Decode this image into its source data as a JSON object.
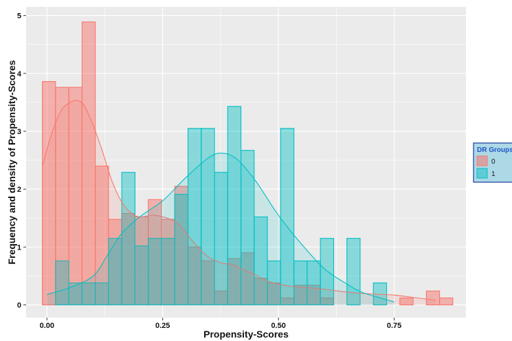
{
  "chart_data": {
    "type": "bar",
    "subtype": "overlaid histogram with density curves",
    "title": "",
    "xlabel": "Propensity-Scores",
    "ylabel": "Frequency and density of Propensity-Scores",
    "xlim": [
      -0.045,
      0.905
    ],
    "ylim": [
      -0.22,
      5.15
    ],
    "xticks": [
      0.0,
      0.25,
      0.5,
      0.75
    ],
    "xtick_labels": [
      "0.00",
      "0.25",
      "0.50",
      "0.75"
    ],
    "yticks": [
      0,
      1,
      2,
      3,
      4,
      5
    ],
    "ytick_labels": [
      "0",
      "1",
      "2",
      "3",
      "4",
      "5"
    ],
    "grid": true,
    "legend": {
      "title": "DR Groups",
      "placement": "right",
      "entries": [
        "0",
        "1"
      ]
    },
    "colors": {
      "group0": "#F8766D",
      "group1": "#00BFC4",
      "panel_bg": "#EBEBEB",
      "legend_bg": "#ADD8E6",
      "legend_border": "#1A3C9E",
      "legend_title": "#1F56C8"
    },
    "bin_width": 0.0286,
    "series": [
      {
        "name": "0",
        "bin_left": [
          -0.01,
          0.0186,
          0.0472,
          0.0758,
          0.1044,
          0.133,
          0.1616,
          0.1902,
          0.2188,
          0.2474,
          0.276,
          0.3046,
          0.3332,
          0.3618,
          0.3904,
          0.419,
          0.4476,
          0.4762,
          0.5048,
          0.5334,
          0.562,
          0.5906,
          0.6192,
          0.6478,
          0.6764,
          0.705,
          0.7336,
          0.7622,
          0.7908,
          0.8194,
          0.848
        ],
        "values": [
          3.86,
          3.76,
          3.76,
          4.89,
          2.4,
          1.48,
          1.58,
          1.52,
          1.82,
          1.48,
          2.05,
          1.0,
          0.76,
          0.24,
          0.8,
          0.9,
          0.46,
          0.38,
          0.12,
          0.34,
          0.34,
          0.12,
          0.0,
          0.0,
          0.0,
          0.0,
          0.0,
          0.12,
          0.0,
          0.24,
          0.12
        ],
        "density": {
          "x": [
            -0.01,
            0.01,
            0.03,
            0.05,
            0.065,
            0.08,
            0.1,
            0.12,
            0.14,
            0.16,
            0.18,
            0.2,
            0.23,
            0.26,
            0.28,
            0.3,
            0.32,
            0.35,
            0.38,
            0.4,
            0.42,
            0.45,
            0.48,
            0.52,
            0.56,
            0.6,
            0.65,
            0.7,
            0.75,
            0.8,
            0.84
          ],
          "y": [
            2.4,
            2.95,
            3.35,
            3.5,
            3.53,
            3.45,
            3.1,
            2.65,
            2.15,
            1.8,
            1.6,
            1.52,
            1.55,
            1.5,
            1.42,
            1.25,
            1.05,
            0.82,
            0.72,
            0.7,
            0.62,
            0.52,
            0.4,
            0.33,
            0.3,
            0.27,
            0.22,
            0.19,
            0.17,
            0.12,
            0.08
          ]
        }
      },
      {
        "name": "1",
        "bin_left": [
          0.0186,
          0.0472,
          0.0758,
          0.1044,
          0.133,
          0.1616,
          0.1902,
          0.2188,
          0.2474,
          0.276,
          0.3046,
          0.3332,
          0.3618,
          0.3904,
          0.419,
          0.4476,
          0.4762,
          0.5048,
          0.5334,
          0.562,
          0.5906,
          0.6192,
          0.6478,
          0.6764,
          0.705,
          0.7336
        ],
        "values": [
          0.76,
          0.38,
          0.38,
          0.38,
          1.15,
          2.29,
          1.02,
          1.15,
          1.15,
          1.91,
          3.05,
          3.05,
          2.29,
          3.43,
          2.67,
          1.52,
          0.76,
          3.05,
          0.76,
          0.76,
          1.15,
          0.0,
          1.15,
          0.0,
          0.38,
          0.0
        ],
        "density": {
          "x": [
            0.0,
            0.05,
            0.1,
            0.13,
            0.16,
            0.2,
            0.25,
            0.3,
            0.35,
            0.38,
            0.41,
            0.45,
            0.5,
            0.55,
            0.6,
            0.65,
            0.68,
            0.72,
            0.75
          ],
          "y": [
            0.18,
            0.3,
            0.5,
            0.85,
            1.22,
            1.52,
            1.8,
            2.2,
            2.55,
            2.62,
            2.52,
            2.15,
            1.55,
            1.05,
            0.62,
            0.35,
            0.22,
            0.12,
            0.05
          ]
        }
      }
    ]
  }
}
